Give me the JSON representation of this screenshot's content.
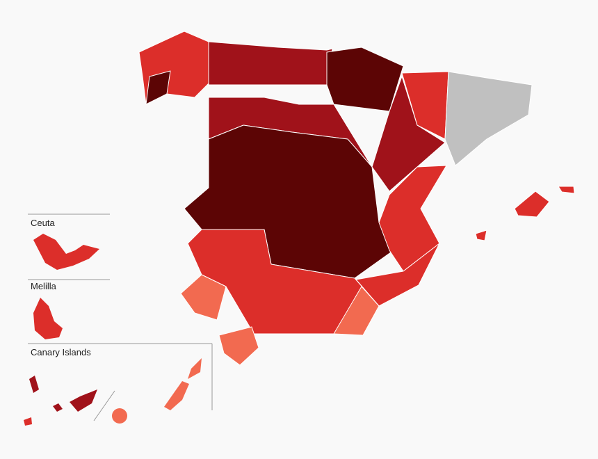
{
  "insets": [
    {
      "label": "Ceuta"
    },
    {
      "label": "Melilla"
    },
    {
      "label": "Canary Islands"
    }
  ]
}
